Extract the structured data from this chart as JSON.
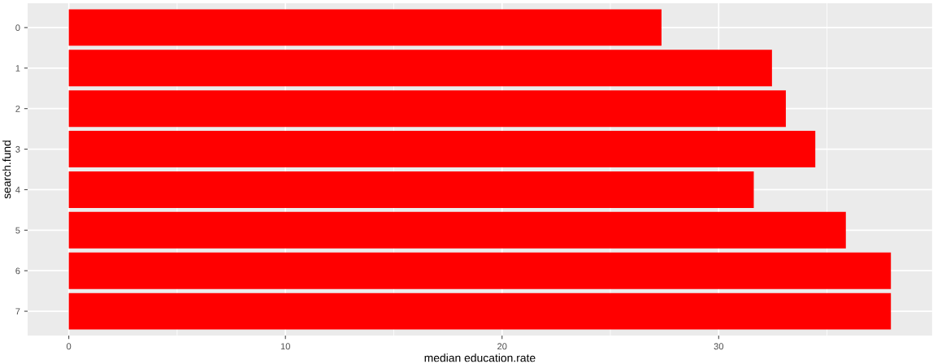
{
  "chart_data": {
    "type": "bar",
    "orientation": "horizontal",
    "xlabel": "median education.rate",
    "ylabel": "search.fund",
    "categories": [
      "0",
      "1",
      "2",
      "3",
      "4",
      "5",
      "6",
      "7"
    ],
    "values": [
      27.36,
      32.46,
      33.1,
      34.46,
      31.62,
      35.87,
      37.95,
      37.95
    ],
    "color": "#ff0000",
    "xlim": [
      -1.9,
      39.85
    ],
    "xticks": [
      0,
      10,
      20,
      30
    ],
    "grid": true
  }
}
